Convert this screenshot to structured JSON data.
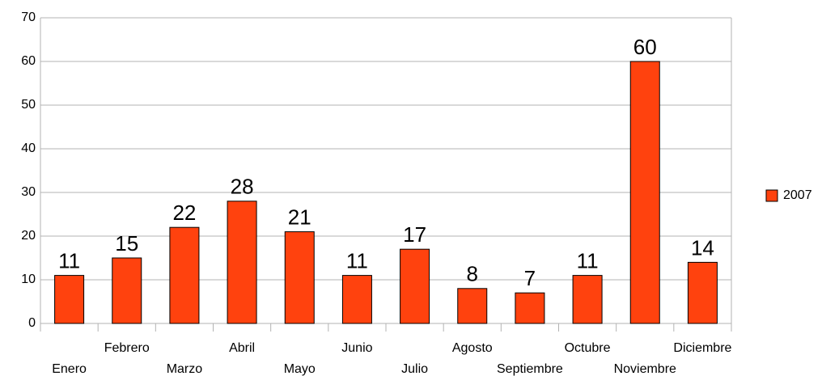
{
  "chart_data": {
    "type": "bar",
    "categories": [
      "Enero",
      "Febrero",
      "Marzo",
      "Abril",
      "Mayo",
      "Junio",
      "Julio",
      "Agosto",
      "Septiembre",
      "Octubre",
      "Noviembre",
      "Diciembre"
    ],
    "series": [
      {
        "name": "2007",
        "color": "#ff420e",
        "values": [
          11,
          15,
          22,
          28,
          21,
          11,
          17,
          8,
          7,
          11,
          60,
          14
        ]
      }
    ],
    "ylim": [
      0,
      70
    ],
    "yticks": [
      0,
      10,
      20,
      30,
      40,
      50,
      60,
      70
    ],
    "grid": true,
    "legend": "right"
  }
}
